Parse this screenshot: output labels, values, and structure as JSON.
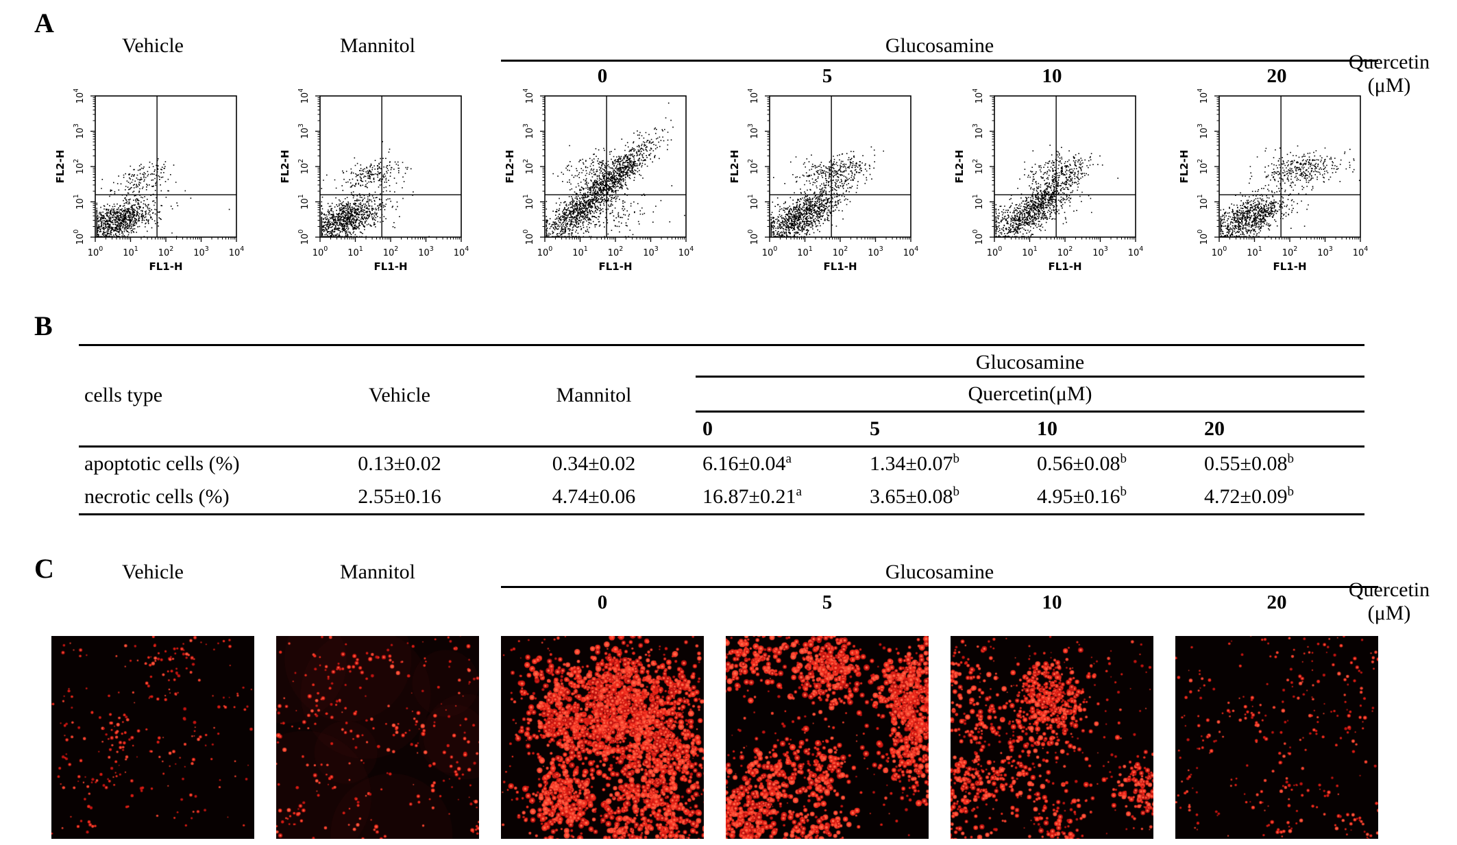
{
  "panelA": {
    "letter": "A",
    "header": {
      "vehicle": "Vehicle",
      "mannitol": "Mannitol",
      "glucosamine": "Glucosamine",
      "doses": [
        "0",
        "5",
        "10",
        "20"
      ],
      "quercetin_line1": "Quercetin",
      "quercetin_line2": "(μM)"
    }
  },
  "chart_data": [
    {
      "type": "scatter",
      "title": "Vehicle",
      "xlabel": "FL1-H",
      "ylabel": "FL2-H",
      "x_log_range": [
        0,
        4
      ],
      "y_log_range": [
        0,
        4
      ],
      "quadrant": {
        "x_log": 1.75,
        "y_log": 1.2
      },
      "clusters": [
        {
          "cx": 0.6,
          "cy": 0.45,
          "sx": 0.5,
          "sy": 0.3,
          "rho": 0.55,
          "n": 950
        },
        {
          "cx": 1.35,
          "cy": 1.7,
          "sx": 0.38,
          "sy": 0.22,
          "rho": 0.25,
          "n": 130
        },
        {
          "cx": 1.3,
          "cy": 0.95,
          "sx": 0.85,
          "sy": 0.55,
          "rho": 0.3,
          "n": 70
        }
      ]
    },
    {
      "type": "scatter",
      "title": "Mannitol",
      "xlabel": "FL1-H",
      "ylabel": "FL2-H",
      "x_log_range": [
        0,
        4
      ],
      "y_log_range": [
        0,
        4
      ],
      "quadrant": {
        "x_log": 1.75,
        "y_log": 1.2
      },
      "clusters": [
        {
          "cx": 0.65,
          "cy": 0.5,
          "sx": 0.52,
          "sy": 0.32,
          "rho": 0.55,
          "n": 950
        },
        {
          "cx": 1.5,
          "cy": 1.8,
          "sx": 0.45,
          "sy": 0.24,
          "rho": 0.25,
          "n": 190
        },
        {
          "cx": 1.35,
          "cy": 1.0,
          "sx": 0.85,
          "sy": 0.55,
          "rho": 0.25,
          "n": 70
        }
      ]
    },
    {
      "type": "scatter",
      "title": "Glucosamine, 0 μM Quercetin",
      "xlabel": "FL1-H",
      "ylabel": "FL2-H",
      "x_log_range": [
        0,
        4
      ],
      "y_log_range": [
        0,
        4
      ],
      "quadrant": {
        "x_log": 1.75,
        "y_log": 1.2
      },
      "clusters": [
        {
          "cx": 1.65,
          "cy": 1.45,
          "sx": 0.75,
          "sy": 0.68,
          "rho": 0.92,
          "n": 1300
        },
        {
          "cx": 0.8,
          "cy": 0.5,
          "sx": 0.5,
          "sy": 0.33,
          "rho": 0.5,
          "n": 350
        },
        {
          "cx": 1.9,
          "cy": 0.7,
          "sx": 0.65,
          "sy": 0.38,
          "rho": 0.25,
          "n": 130
        },
        {
          "cx": 1.55,
          "cy": 1.95,
          "sx": 0.55,
          "sy": 0.28,
          "rho": 0.3,
          "n": 170
        }
      ]
    },
    {
      "type": "scatter",
      "title": "Glucosamine, 5 μM Quercetin",
      "xlabel": "FL1-H",
      "ylabel": "FL2-H",
      "x_log_range": [
        0,
        4
      ],
      "y_log_range": [
        0,
        4
      ],
      "quadrant": {
        "x_log": 1.75,
        "y_log": 1.2
      },
      "clusters": [
        {
          "cx": 0.8,
          "cy": 0.55,
          "sx": 0.55,
          "sy": 0.34,
          "rho": 0.6,
          "n": 850
        },
        {
          "cx": 1.5,
          "cy": 1.15,
          "sx": 0.6,
          "sy": 0.5,
          "rho": 0.85,
          "n": 320
        },
        {
          "cx": 1.7,
          "cy": 1.9,
          "sx": 0.5,
          "sy": 0.24,
          "rho": 0.2,
          "n": 240
        }
      ]
    },
    {
      "type": "scatter",
      "title": "Glucosamine, 10 μM Quercetin",
      "xlabel": "FL1-H",
      "ylabel": "FL2-H",
      "x_log_range": [
        0,
        4
      ],
      "y_log_range": [
        0,
        4
      ],
      "quadrant": {
        "x_log": 1.75,
        "y_log": 1.2
      },
      "clusters": [
        {
          "cx": 1.0,
          "cy": 0.7,
          "sx": 0.6,
          "sy": 0.42,
          "rho": 0.7,
          "n": 850
        },
        {
          "cx": 1.65,
          "cy": 1.35,
          "sx": 0.5,
          "sy": 0.42,
          "rho": 0.85,
          "n": 260
        },
        {
          "cx": 1.85,
          "cy": 1.95,
          "sx": 0.48,
          "sy": 0.24,
          "rho": 0.2,
          "n": 200
        }
      ]
    },
    {
      "type": "scatter",
      "title": "Glucosamine, 20 μM Quercetin",
      "xlabel": "FL1-H",
      "ylabel": "FL2-H",
      "x_log_range": [
        0,
        4
      ],
      "y_log_range": [
        0,
        4
      ],
      "quadrant": {
        "x_log": 1.75,
        "y_log": 1.2
      },
      "clusters": [
        {
          "cx": 0.85,
          "cy": 0.55,
          "sx": 0.5,
          "sy": 0.33,
          "rho": 0.55,
          "n": 800
        },
        {
          "cx": 2.35,
          "cy": 1.95,
          "sx": 0.55,
          "sy": 0.23,
          "rho": 0.1,
          "n": 330
        },
        {
          "cx": 1.5,
          "cy": 1.0,
          "sx": 0.8,
          "sy": 0.5,
          "rho": 0.25,
          "n": 60
        }
      ]
    }
  ],
  "panelB": {
    "letter": "B",
    "header": {
      "cells_type": "cells type",
      "vehicle": "Vehicle",
      "mannitol": "Mannitol",
      "glucosamine": "Glucosamine",
      "quercetin": "Quercetin(μM)",
      "doses": [
        "0",
        "5",
        "10",
        "20"
      ]
    },
    "rows": [
      {
        "label": "apoptotic cells (%)",
        "values": [
          {
            "v": "0.13±0.02",
            "sup": ""
          },
          {
            "v": "0.34±0.02",
            "sup": ""
          },
          {
            "v": "6.16±0.04",
            "sup": "a"
          },
          {
            "v": "1.34±0.07",
            "sup": "b"
          },
          {
            "v": "0.56±0.08",
            "sup": "b"
          },
          {
            "v": "0.55±0.08",
            "sup": "b"
          }
        ]
      },
      {
        "label": "necrotic cells (%)",
        "values": [
          {
            "v": "2.55±0.16",
            "sup": ""
          },
          {
            "v": "4.74±0.06",
            "sup": ""
          },
          {
            "v": "16.87±0.21",
            "sup": "a"
          },
          {
            "v": "3.65±0.08",
            "sup": "b"
          },
          {
            "v": "4.95±0.16",
            "sup": "b"
          },
          {
            "v": "4.72±0.09",
            "sup": "b"
          }
        ]
      }
    ]
  },
  "panelC": {
    "letter": "C",
    "header": {
      "vehicle": "Vehicle",
      "mannitol": "Mannitol",
      "glucosamine": "Glucosamine",
      "doses": [
        "0",
        "5",
        "10",
        "20"
      ],
      "quercetin_line1": "Quercetin",
      "quercetin_line2": "(μM)"
    },
    "palette": [
      "#d81a12",
      "#ef2a1c",
      "#c11310",
      "#f9432f"
    ],
    "highlight": "#ff6a4a",
    "images": [
      {
        "name": "vehicle",
        "bg": "#070101",
        "clumps": 30,
        "per": 6,
        "spread": 10,
        "rmin": 1.0,
        "rmax": 2.6,
        "singles": 90,
        "haze": false
      },
      {
        "name": "mannitol",
        "bg": "#0c0202",
        "clumps": 26,
        "per": 8,
        "spread": 12,
        "rmin": 1.2,
        "rmax": 3.2,
        "singles": 110,
        "haze": true
      },
      {
        "name": "glucosamine-0",
        "bg": "#080101",
        "clumps": 16,
        "per": 150,
        "spread": 27,
        "rmin": 1.6,
        "rmax": 4.6,
        "singles": 220,
        "haze": false
      },
      {
        "name": "glucosamine-5",
        "bg": "#060101",
        "clumps": 13,
        "per": 140,
        "spread": 25,
        "rmin": 1.6,
        "rmax": 4.6,
        "singles": 170,
        "haze": false
      },
      {
        "name": "glucosamine-10",
        "bg": "#070101",
        "clumps": 15,
        "per": 75,
        "spread": 23,
        "rmin": 1.3,
        "rmax": 3.9,
        "singles": 170,
        "haze": false
      },
      {
        "name": "quercetin-20",
        "bg": "#060101",
        "clumps": 30,
        "per": 7,
        "spread": 12,
        "rmin": 1.0,
        "rmax": 2.8,
        "singles": 110,
        "haze": false
      }
    ]
  }
}
